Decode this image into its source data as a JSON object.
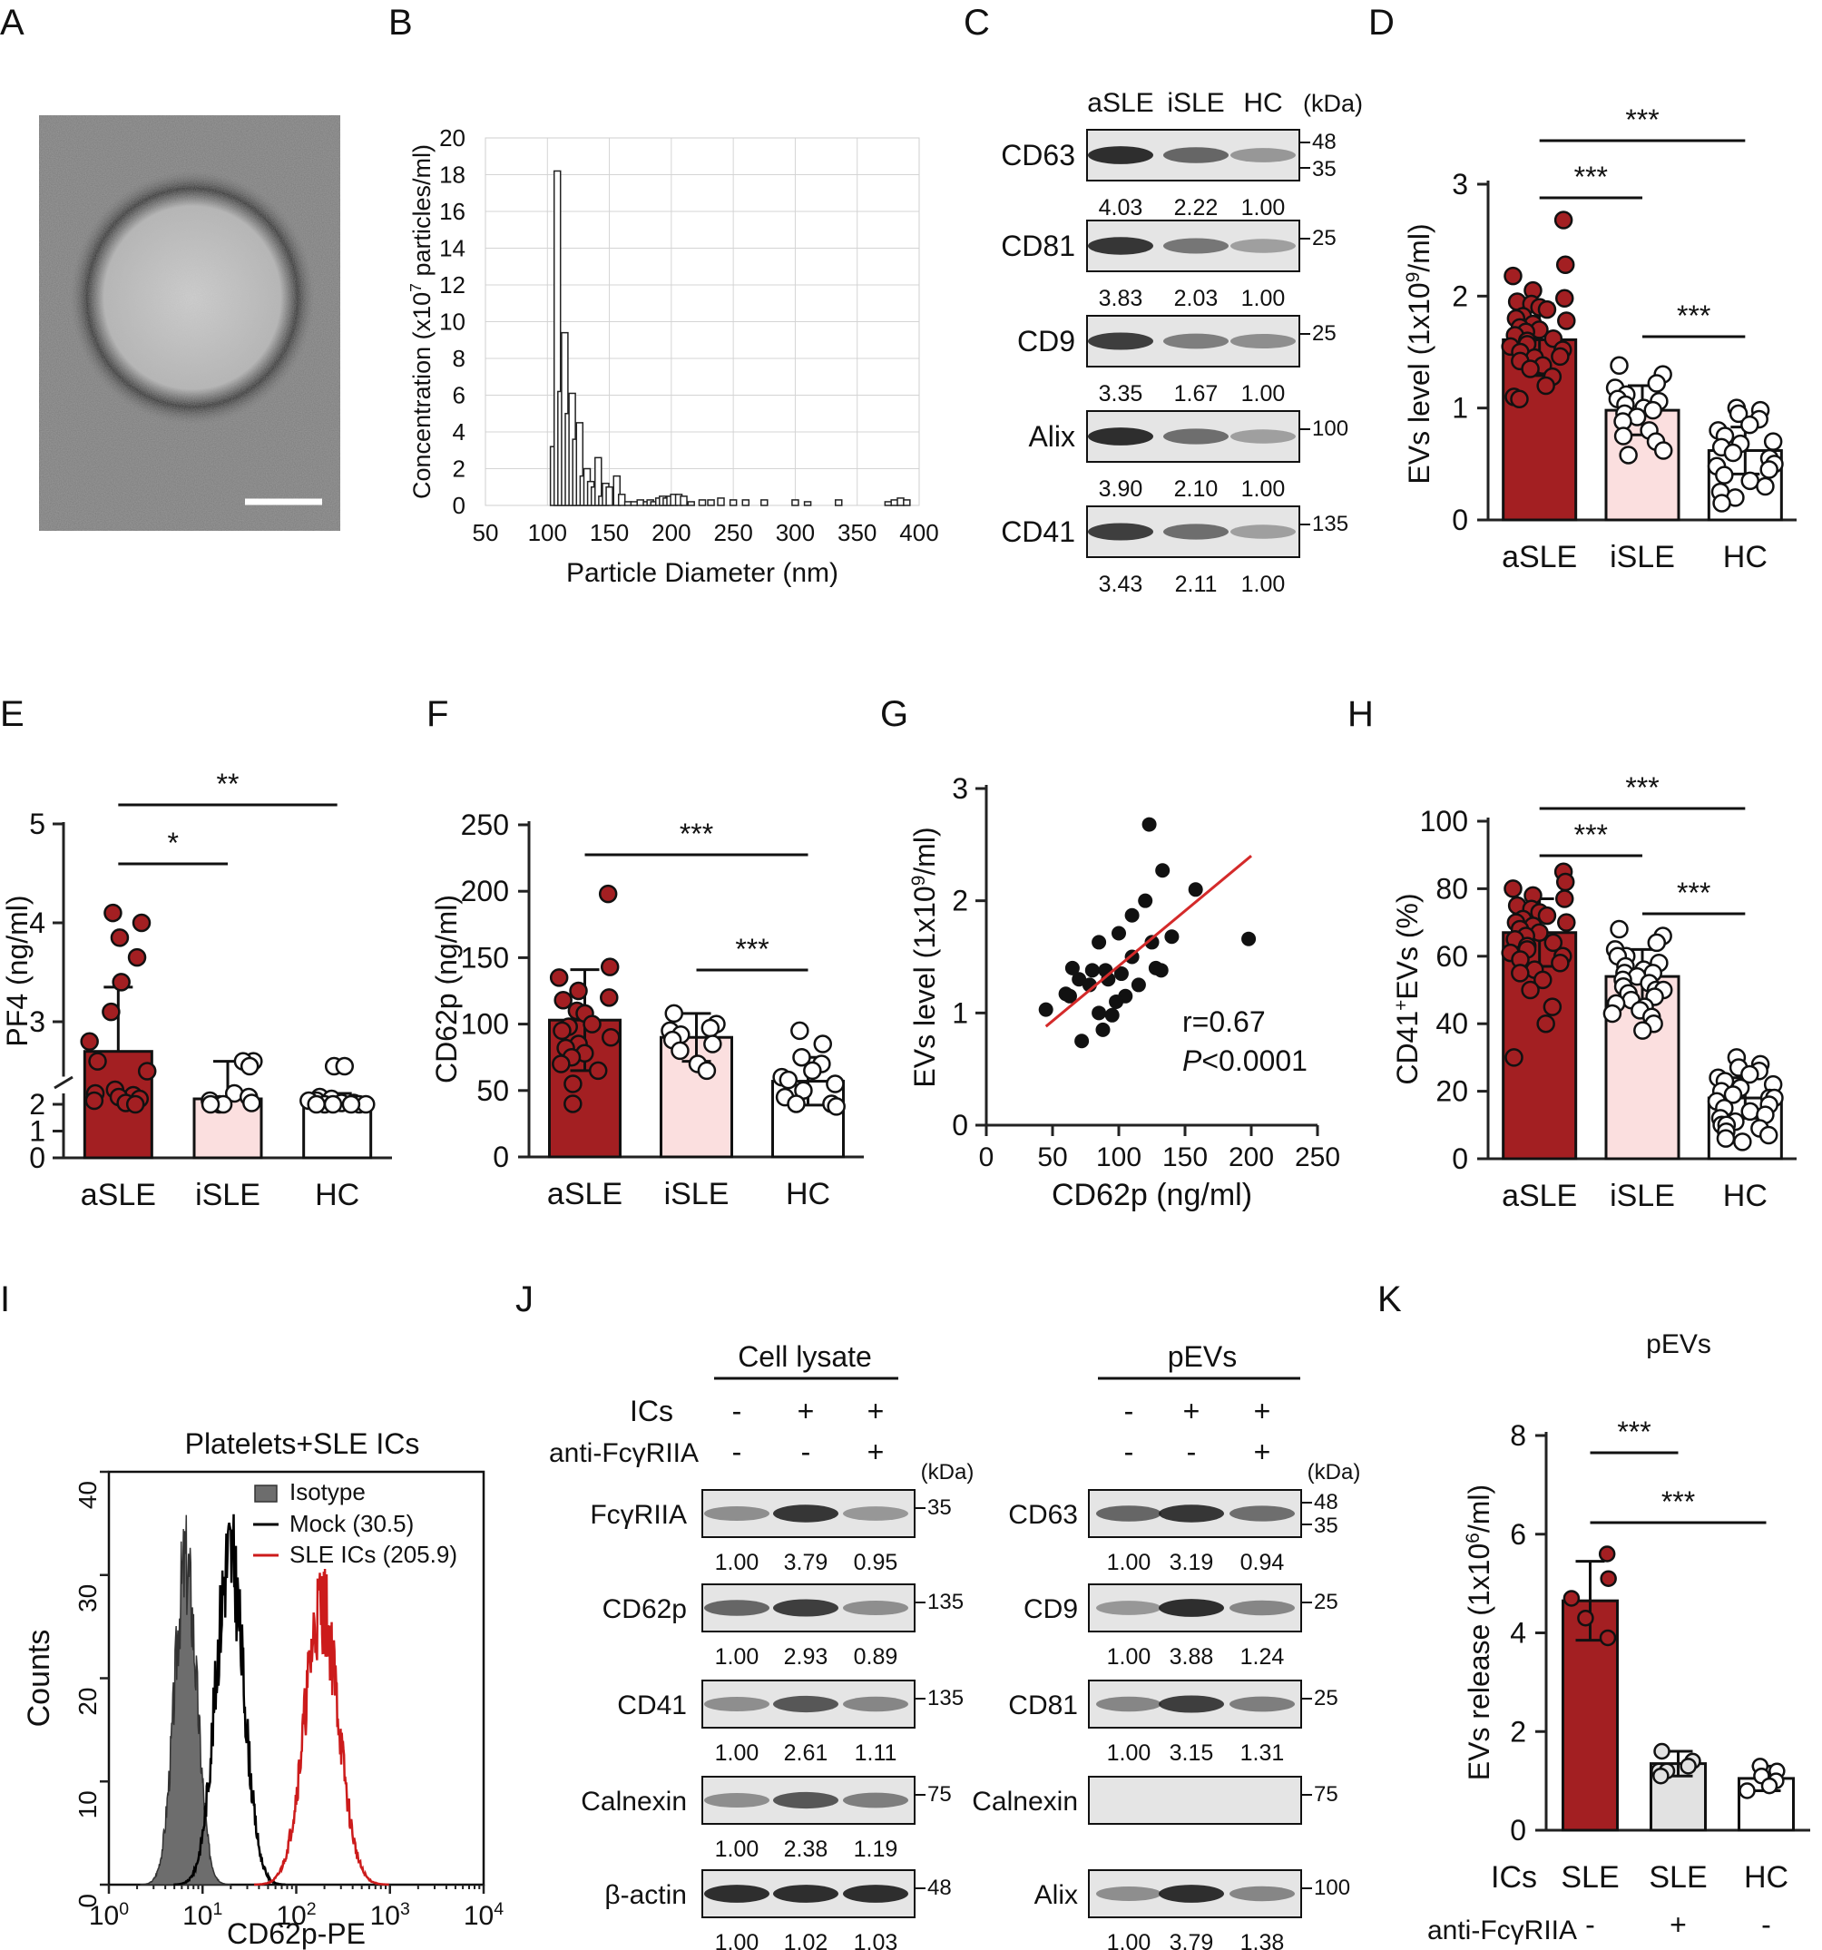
{
  "colors": {
    "asle_fill": "#a31f22",
    "isle_fill": "#fbdfdf",
    "hc_fill": "#ffffff",
    "blot_bg": "#e5e5e5",
    "band": "#1c1c1c",
    "isotype_fill": "#6d6d6d",
    "mock_line": "#000000",
    "sle_line": "#cc1b1b",
    "fit_line": "#d42a2a",
    "axis": "#222222"
  },
  "panel_letters": [
    "A",
    "B",
    "C",
    "D",
    "E",
    "F",
    "G",
    "H",
    "I",
    "J",
    "K"
  ],
  "chart_data": [
    {
      "id": "B",
      "type": "bar",
      "xlabel": "Particle Diameter (nm)",
      "ylabel": "Concentration (x10^7 particles/ml)",
      "ylabel_main": "Concentration (x10",
      "ylabel_sup": "7",
      "ylabel_tail": " particles/ml)",
      "xlim": [
        50,
        400
      ],
      "ylim": [
        0,
        20
      ],
      "xticks": [
        50,
        100,
        150,
        200,
        250,
        300,
        350,
        400
      ],
      "yticks": [
        0,
        2,
        4,
        6,
        8,
        10,
        12,
        14,
        16,
        18,
        20
      ],
      "grid": true,
      "x": [
        105,
        108,
        111,
        114,
        117,
        120,
        123,
        126,
        129,
        132,
        135,
        138,
        141,
        144,
        147,
        150,
        156,
        160,
        165,
        170,
        175,
        180,
        183,
        186,
        190,
        193,
        196,
        199,
        202,
        206,
        210,
        216,
        225,
        232,
        240,
        250,
        260,
        275,
        300,
        310,
        335,
        375,
        380,
        385,
        390
      ],
      "values": [
        3.2,
        18.2,
        6.2,
        9.4,
        5.0,
        6.1,
        3.6,
        4.5,
        1.6,
        2.0,
        1.3,
        1.0,
        2.6,
        0.5,
        1.2,
        1.0,
        1.6,
        0.6,
        0.2,
        0.2,
        0.3,
        0.2,
        0.3,
        0.2,
        0.4,
        0.5,
        0.4,
        0.5,
        0.6,
        0.6,
        0.5,
        0.2,
        0.3,
        0.3,
        0.4,
        0.3,
        0.3,
        0.3,
        0.3,
        0.2,
        0.3,
        0.2,
        0.3,
        0.4,
        0.3
      ]
    },
    {
      "id": "D",
      "type": "bar",
      "categories": [
        "aSLE",
        "iSLE",
        "HC"
      ],
      "values": [
        1.61,
        0.98,
        0.62
      ],
      "errors": [
        0.32,
        0.22,
        0.21
      ],
      "ylabel": "EVs level (1x10^9/ml)",
      "ylabel_main": "EVs level (1x10",
      "ylabel_sup": "9",
      "ylabel_tail": "/ml)",
      "ylim": [
        0,
        3
      ],
      "yticks": [
        0,
        1,
        2,
        3
      ],
      "points": [
        [
          2.68,
          2.28,
          2.18,
          2.05,
          1.98,
          1.95,
          1.93,
          1.9,
          1.88,
          1.82,
          1.8,
          1.78,
          1.75,
          1.72,
          1.7,
          1.68,
          1.65,
          1.62,
          1.6,
          1.57,
          1.55,
          1.52,
          1.5,
          1.46,
          1.45,
          1.42,
          1.38,
          1.35,
          1.28,
          1.2,
          1.1,
          1.08
        ],
        [
          1.38,
          1.3,
          1.22,
          1.18,
          1.12,
          1.08,
          1.06,
          1.03,
          1.0,
          0.98,
          0.95,
          0.92,
          0.88,
          0.8,
          0.75,
          0.7,
          0.62,
          0.58
        ],
        [
          1.0,
          0.98,
          0.95,
          0.9,
          0.85,
          0.8,
          0.75,
          0.7,
          0.68,
          0.65,
          0.6,
          0.55,
          0.5,
          0.48,
          0.45,
          0.4,
          0.35,
          0.3,
          0.25,
          0.2,
          0.15
        ]
      ],
      "significance": [
        {
          "from": 0,
          "to": 2,
          "label": "***"
        },
        {
          "from": 0,
          "to": 1,
          "label": "***"
        },
        {
          "from": 1,
          "to": 2,
          "label": "***"
        }
      ]
    },
    {
      "id": "E",
      "type": "bar",
      "categories": [
        "aSLE",
        "iSLE",
        "HC"
      ],
      "values": [
        2.7,
        2.15,
        2.1
      ],
      "errors": [
        0.65,
        0.45,
        0.2
      ],
      "ylabel": "PF4 (ng/ml)",
      "yticks_upper": [
        3,
        4,
        5
      ],
      "yticks_lower": [
        0,
        1,
        2
      ],
      "axis_break": true,
      "points": [
        [
          4.1,
          4.0,
          3.85,
          3.65,
          3.4,
          3.1,
          2.8,
          2.6,
          2.5,
          2.4,
          2.3,
          2.25,
          2.2,
          2.15,
          2.1,
          2.05,
          2.0
        ],
        [
          2.6,
          2.6,
          2.55,
          2.3,
          2.2,
          2.1,
          2.05,
          2.0,
          2.0,
          2.0
        ],
        [
          2.55,
          2.55,
          2.2,
          2.15,
          2.1,
          2.1,
          2.05,
          2.05,
          2.0,
          2.0,
          2.0,
          2.0,
          2.0,
          2.0
        ]
      ],
      "significance": [
        {
          "from": 0,
          "to": 2,
          "label": "**"
        },
        {
          "from": 0,
          "to": 1,
          "label": "*"
        }
      ]
    },
    {
      "id": "F",
      "type": "bar",
      "categories": [
        "aSLE",
        "iSLE",
        "HC"
      ],
      "values": [
        103,
        90,
        57
      ],
      "errors": [
        38,
        18,
        18
      ],
      "ylabel": "CD62p (ng/ml)",
      "ylim": [
        0,
        250
      ],
      "yticks": [
        0,
        50,
        100,
        150,
        200,
        250
      ],
      "points": [
        [
          198,
          143,
          135,
          125,
          120,
          118,
          110,
          108,
          100,
          98,
          95,
          90,
          85,
          82,
          78,
          75,
          70,
          65,
          55,
          40
        ],
        [
          108,
          100,
          97,
          95,
          92,
          88,
          85,
          80,
          70,
          65
        ],
        [
          95,
          85,
          75,
          70,
          65,
          60,
          58,
          55,
          50,
          45,
          40,
          40,
          38
        ]
      ],
      "significance": [
        {
          "from": 0,
          "to": 2,
          "label": "***"
        },
        {
          "from": 1,
          "to": 2,
          "label": "***"
        }
      ]
    },
    {
      "id": "G",
      "type": "scatter",
      "xlabel": "CD62p (ng/ml)",
      "ylabel": "EVs level (1x10^9/ml)",
      "ylabel_main": "EVs level (1x10",
      "ylabel_sup": "9",
      "ylabel_tail": "/ml)",
      "xlim": [
        0,
        250
      ],
      "ylim": [
        0,
        3
      ],
      "xticks": [
        0,
        50,
        100,
        150,
        200,
        250
      ],
      "yticks": [
        0,
        1,
        2,
        3
      ],
      "x": [
        123,
        133,
        158,
        198,
        110,
        120,
        140,
        100,
        125,
        85,
        65,
        80,
        90,
        102,
        70,
        78,
        60,
        63,
        45,
        85,
        95,
        128,
        132,
        88,
        105,
        115,
        72,
        110,
        98,
        92
      ],
      "y": [
        2.68,
        2.27,
        2.1,
        1.66,
        1.87,
        2.0,
        1.68,
        1.71,
        1.63,
        1.63,
        1.4,
        1.38,
        1.38,
        1.35,
        1.3,
        1.25,
        1.17,
        1.15,
        1.03,
        1.0,
        0.98,
        1.4,
        1.38,
        0.85,
        1.15,
        1.25,
        0.75,
        1.5,
        1.1,
        1.3
      ],
      "fit": {
        "x": [
          45,
          200
        ],
        "y": [
          0.88,
          2.4
        ]
      },
      "annotation_r": "r=0.67",
      "annotation_p_italic": "P",
      "annotation_p_rest": "<0.0001"
    },
    {
      "id": "H",
      "type": "bar",
      "categories": [
        "aSLE",
        "iSLE",
        "HC"
      ],
      "values": [
        67,
        54,
        18
      ],
      "errors": [
        10,
        8,
        6
      ],
      "ylabel": "CD41+EVs (%)",
      "ylabel_pre": "CD41",
      "ylabel_sup": "+",
      "ylabel_tail": "EVs (%)",
      "ylim": [
        0,
        100
      ],
      "yticks": [
        0,
        20,
        40,
        60,
        80,
        100
      ],
      "points": [
        [
          85,
          82,
          80,
          78,
          77,
          75,
          74,
          73,
          72,
          71,
          70,
          70,
          69,
          68,
          67,
          66,
          65,
          64,
          63,
          62,
          61,
          60,
          59,
          58,
          56,
          55,
          53,
          50,
          45,
          40,
          30
        ],
        [
          68,
          66,
          64,
          62,
          60,
          60,
          58,
          57,
          56,
          55,
          55,
          54,
          53,
          52,
          51,
          50,
          50,
          49,
          48,
          47,
          46,
          45,
          44,
          43,
          42,
          40,
          38
        ],
        [
          30,
          28,
          27,
          26,
          25,
          24,
          23,
          22,
          21,
          20,
          19,
          18,
          18,
          17,
          16,
          15,
          14,
          13,
          12,
          11,
          10,
          10,
          9,
          8,
          7,
          6,
          5
        ]
      ],
      "significance": [
        {
          "from": 0,
          "to": 2,
          "label": "***"
        },
        {
          "from": 0,
          "to": 1,
          "label": "***"
        },
        {
          "from": 1,
          "to": 2,
          "label": "***"
        }
      ]
    },
    {
      "id": "I",
      "type": "line",
      "title": "Platelets+SLE ICs",
      "xlabel": "CD62p-PE",
      "ylabel": "Counts",
      "xscale": "log",
      "xlim": [
        1,
        10000
      ],
      "ylim": [
        0,
        40
      ],
      "yticks": [
        0,
        10,
        20,
        30,
        40
      ],
      "xtick_labels": [
        {
          "base": "10",
          "exp": "0"
        },
        {
          "base": "10",
          "exp": "1"
        },
        {
          "base": "10",
          "exp": "2"
        },
        {
          "base": "10",
          "exp": "3"
        },
        {
          "base": "10",
          "exp": "4"
        }
      ],
      "legend": [
        "Isotype",
        "Mock (30.5)",
        "SLE ICs (205.9)"
      ],
      "series": [
        {
          "name": "Isotype",
          "log_center": 0.82,
          "width": 0.12,
          "peak": 31
        },
        {
          "name": "Mock (30.5)",
          "log_center": 1.29,
          "width": 0.15,
          "peak": 32
        },
        {
          "name": "SLE ICs (205.9)",
          "log_center": 2.27,
          "width": 0.18,
          "peak": 27
        }
      ]
    },
    {
      "id": "K",
      "type": "bar",
      "title": "pEVs",
      "categories": [
        "SLE",
        "SLE",
        "HC"
      ],
      "row_label_ics": "ICs",
      "row_label_anti": "anti-FcγRIIA",
      "anti_signs": [
        "-",
        "+",
        "-"
      ],
      "values": [
        4.65,
        1.35,
        1.05
      ],
      "errors": [
        0.8,
        0.25,
        0.25
      ],
      "ylabel": "EVs release (1x10^6/ml)",
      "ylabel_main": "EVs release (1x10",
      "ylabel_sup": "6",
      "ylabel_tail": "/ml)",
      "ylim": [
        0,
        8
      ],
      "yticks": [
        0,
        2,
        4,
        6,
        8
      ],
      "points": [
        [
          5.6,
          5.1,
          4.7,
          4.3,
          3.9
        ],
        [
          1.6,
          1.4,
          1.3,
          1.2,
          1.2,
          1.1
        ],
        [
          1.3,
          1.2,
          1.1,
          1.0,
          0.9,
          0.8
        ]
      ],
      "significance": [
        {
          "from": 0,
          "to": 1,
          "label": "***"
        },
        {
          "from": 0,
          "to": 2,
          "label": "***"
        }
      ]
    }
  ],
  "westernC": {
    "columns": [
      "aSLE",
      "iSLE",
      "HC"
    ],
    "unit": "(kDa)",
    "rows": [
      {
        "label": "CD63",
        "intensity": [
          0.95,
          0.6,
          0.3
        ],
        "quant": [
          "4.03",
          "2.22",
          "1.00"
        ],
        "markers": [
          "48",
          "35"
        ]
      },
      {
        "label": "CD81",
        "intensity": [
          0.9,
          0.5,
          0.25
        ],
        "quant": [
          "3.83",
          "2.03",
          "1.00"
        ],
        "markers": [
          "25"
        ]
      },
      {
        "label": "CD9",
        "intensity": [
          0.85,
          0.45,
          0.35
        ],
        "quant": [
          "3.35",
          "1.67",
          "1.00"
        ],
        "markers": [
          "25"
        ]
      },
      {
        "label": "Alix",
        "intensity": [
          0.95,
          0.55,
          0.25
        ],
        "quant": [
          "3.90",
          "2.10",
          "1.00"
        ],
        "markers": [
          "100"
        ]
      },
      {
        "label": "CD41",
        "intensity": [
          0.85,
          0.55,
          0.25
        ],
        "quant": [
          "3.43",
          "2.11",
          "1.00"
        ],
        "markers": [
          "135"
        ]
      }
    ]
  },
  "westernJ": {
    "left": {
      "header": "Cell lysate",
      "ics_label": "ICs",
      "anti_label": "anti-FcγRIIA",
      "ics": [
        "-",
        "+",
        "+"
      ],
      "anti": [
        "-",
        "-",
        "+"
      ],
      "unit": "(kDa)",
      "rows": [
        {
          "label": "FcγRIIA",
          "intensity": [
            0.35,
            0.9,
            0.3
          ],
          "quant": [
            "1.00",
            "3.79",
            "0.95"
          ],
          "markers": [
            "35"
          ]
        },
        {
          "label": "CD62p",
          "intensity": [
            0.6,
            0.85,
            0.35
          ],
          "quant": [
            "1.00",
            "2.93",
            "0.89"
          ],
          "markers": [
            "135"
          ]
        },
        {
          "label": "CD41",
          "intensity": [
            0.35,
            0.7,
            0.4
          ],
          "quant": [
            "1.00",
            "2.61",
            "1.11"
          ],
          "markers": [
            "135"
          ]
        },
        {
          "label": "Calnexin",
          "intensity": [
            0.35,
            0.7,
            0.45
          ],
          "quant": [
            "1.00",
            "2.38",
            "1.19"
          ],
          "markers": [
            "75"
          ]
        },
        {
          "label": "β-actin",
          "intensity": [
            0.95,
            0.95,
            0.95
          ],
          "quant": [
            "1.00",
            "1.02",
            "1.03"
          ],
          "markers": [
            "48"
          ]
        }
      ]
    },
    "right": {
      "header": "pEVs",
      "ics": [
        "-",
        "+",
        "+"
      ],
      "anti": [
        "-",
        "-",
        "+"
      ],
      "unit": "(kDa)",
      "rows": [
        {
          "label": "CD63",
          "intensity": [
            0.6,
            0.9,
            0.55
          ],
          "quant": [
            "1.00",
            "3.19",
            "0.94"
          ],
          "markers": [
            "48",
            "35"
          ]
        },
        {
          "label": "CD9",
          "intensity": [
            0.3,
            0.95,
            0.4
          ],
          "quant": [
            "1.00",
            "3.88",
            "1.24"
          ],
          "markers": [
            "25"
          ]
        },
        {
          "label": "CD81",
          "intensity": [
            0.4,
            0.85,
            0.45
          ],
          "quant": [
            "1.00",
            "3.15",
            "1.31"
          ],
          "markers": [
            "25"
          ]
        },
        {
          "label": "Calnexin",
          "intensity": [
            0,
            0,
            0
          ],
          "quant": [],
          "markers": [
            "75"
          ]
        },
        {
          "label": "Alix",
          "intensity": [
            0.35,
            0.95,
            0.4
          ],
          "quant": [
            "1.00",
            "3.79",
            "1.38"
          ],
          "markers": [
            "100"
          ]
        }
      ]
    }
  }
}
